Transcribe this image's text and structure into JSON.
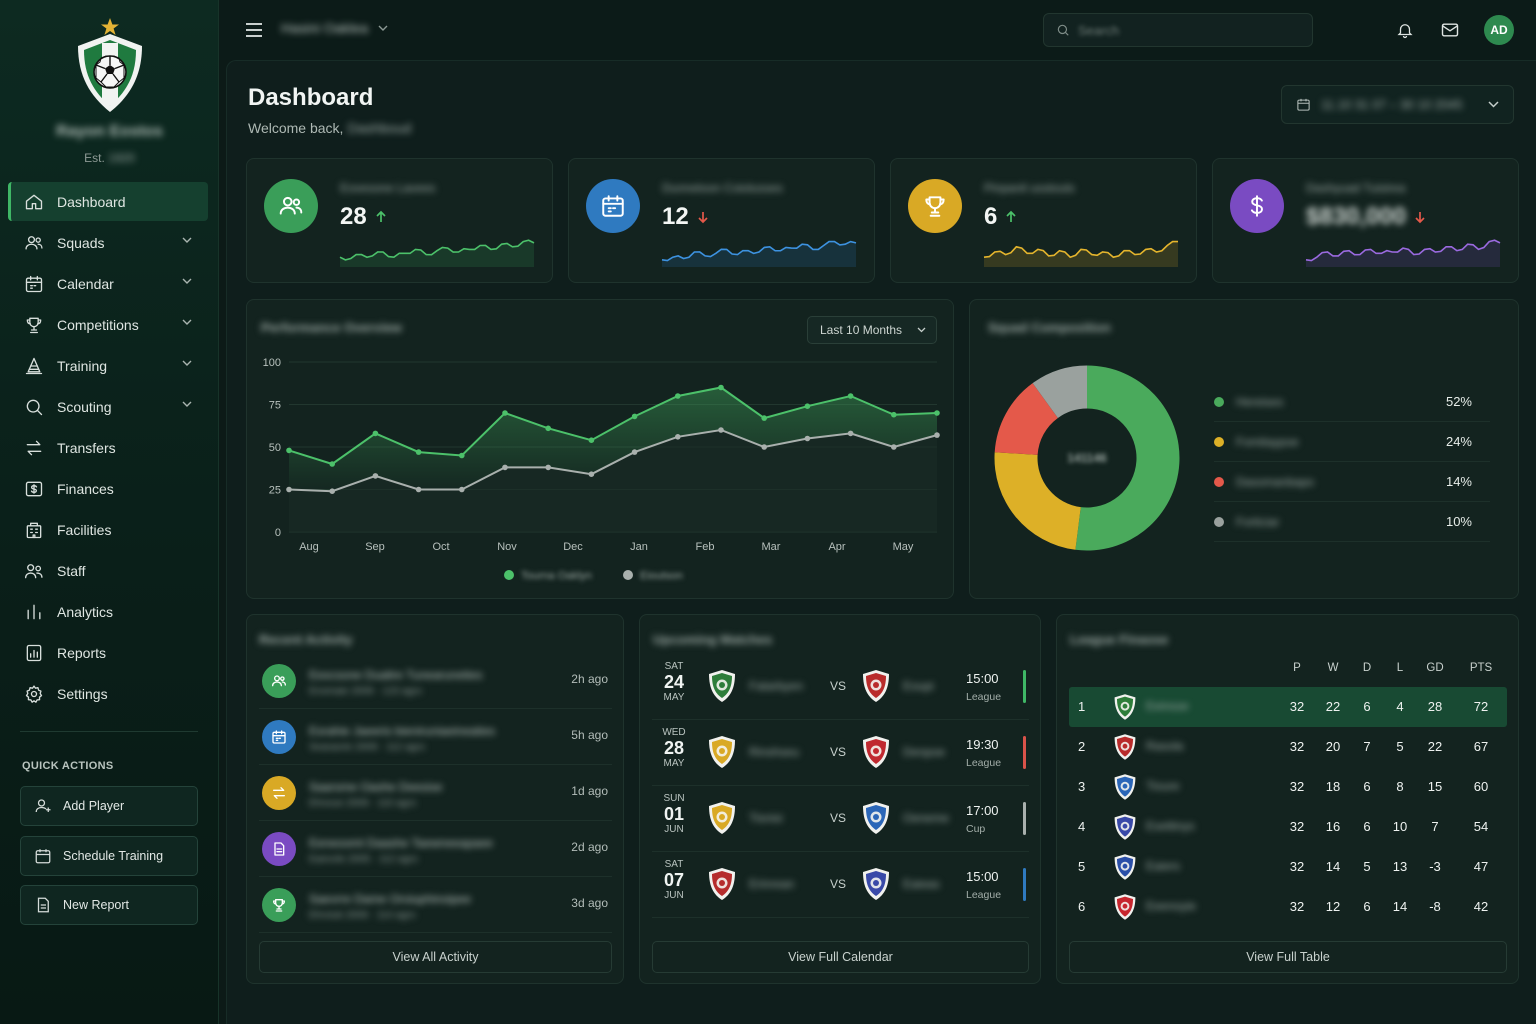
{
  "sidebar": {
    "club_name": "Rayon Eostos",
    "est_label": "Est.",
    "est_year": "1920",
    "nav": [
      {
        "label": "Dashboard",
        "icon": "home-icon",
        "active": true,
        "expandable": false
      },
      {
        "label": "Squads",
        "icon": "users-icon",
        "expandable": true
      },
      {
        "label": "Calendar",
        "icon": "calendar-icon",
        "expandable": true
      },
      {
        "label": "Competitions",
        "icon": "trophy-icon",
        "expandable": true
      },
      {
        "label": "Training",
        "icon": "cone-icon",
        "expandable": true
      },
      {
        "label": "Scouting",
        "icon": "search-icon",
        "expandable": true
      },
      {
        "label": "Transfers",
        "icon": "transfer-icon",
        "expandable": false
      },
      {
        "label": "Finances",
        "icon": "finance-icon",
        "expandable": false
      },
      {
        "label": "Facilities",
        "icon": "building-icon",
        "expandable": false
      },
      {
        "label": "Staff",
        "icon": "staff-icon",
        "expandable": false
      },
      {
        "label": "Analytics",
        "icon": "bar-chart-icon",
        "expandable": false
      },
      {
        "label": "Reports",
        "icon": "report-icon",
        "expandable": false
      },
      {
        "label": "Settings",
        "icon": "gear-icon",
        "expandable": false
      }
    ],
    "quick_actions_title": "QUICK ACTIONS",
    "quick_actions": [
      {
        "label": "Add Player",
        "icon": "add-user-icon"
      },
      {
        "label": "Schedule Training",
        "icon": "calendar-icon"
      },
      {
        "label": "New Report",
        "icon": "document-icon"
      }
    ]
  },
  "topbar": {
    "team_selector": "Hasini Oaklea",
    "search_placeholder": "Search",
    "avatar_initials": "AD"
  },
  "header": {
    "title": "Dashboard",
    "welcome": "Welcome back,",
    "user_name": "Dashboud",
    "date_range": "11.10 31 07 – 30 10 2045"
  },
  "stats": [
    {
      "label": "Eovesone Lavees",
      "value": "28",
      "trend": "up",
      "color": "#3a9e59",
      "icon": "users-icon",
      "spark": [
        0.3,
        0.25,
        0.4,
        0.35,
        0.5,
        0.3,
        0.45,
        0.6,
        0.4,
        0.55,
        0.65,
        0.5,
        0.6,
        0.75,
        0.6,
        0.8,
        0.7,
        0.9,
        0.85
      ]
    },
    {
      "label": "Dunnetoon Coiolusses",
      "value": "12",
      "trend": "down",
      "color": "#2f7ac0",
      "icon": "calendar-icon",
      "spark": [
        0.2,
        0.3,
        0.25,
        0.5,
        0.35,
        0.45,
        0.6,
        0.4,
        0.55,
        0.5,
        0.7,
        0.55,
        0.65,
        0.8,
        0.6,
        0.75,
        0.9,
        0.8,
        0.85
      ]
    },
    {
      "label": "Pinpanil usstouts",
      "value": "6",
      "trend": "up",
      "color": "#d9a925",
      "icon": "trophy-icon",
      "spark": [
        0.3,
        0.5,
        0.4,
        0.7,
        0.45,
        0.6,
        0.35,
        0.55,
        0.3,
        0.6,
        0.4,
        0.5,
        0.3,
        0.55,
        0.4,
        0.6,
        0.5,
        0.75,
        0.9
      ]
    },
    {
      "label": "Dashyuad Tuisirea",
      "value": "$830,000",
      "trend": "down",
      "color": "#7a4bc2",
      "icon": "dollar-icon",
      "spark": [
        0.2,
        0.3,
        0.5,
        0.35,
        0.55,
        0.4,
        0.6,
        0.45,
        0.5,
        0.65,
        0.4,
        0.6,
        0.5,
        0.7,
        0.55,
        0.8,
        0.6,
        0.9,
        0.85
      ]
    }
  ],
  "performance": {
    "title": "Performance Overview",
    "range_label": "Last 10 Months",
    "legend": [
      "Tourna Oaklyn",
      "Eioutson"
    ]
  },
  "chart_data": {
    "type": "line",
    "x": [
      "Aug",
      "Sep",
      "Oct",
      "Nov",
      "Dec",
      "Jan",
      "Feb",
      "Mar",
      "Apr",
      "May"
    ],
    "ylim": [
      0,
      100
    ],
    "yticks": [
      0,
      25,
      50,
      75,
      100
    ],
    "grid": true,
    "legend_placement": "bottom",
    "series": [
      {
        "name": "Tourna Oaklyn",
        "color": "#4cc16a",
        "points": [
          [
            0,
            48
          ],
          [
            0.7,
            40
          ],
          [
            1.4,
            58
          ],
          [
            2.1,
            47
          ],
          [
            2.8,
            45
          ],
          [
            3.5,
            70
          ],
          [
            4.2,
            61
          ],
          [
            4.9,
            54
          ],
          [
            5.6,
            68
          ],
          [
            6.3,
            80
          ],
          [
            7.0,
            85
          ],
          [
            7.7,
            67
          ],
          [
            8.4,
            74
          ],
          [
            9.1,
            80
          ],
          [
            9.8,
            69
          ],
          [
            10.5,
            70
          ]
        ]
      },
      {
        "name": "Eioutson",
        "color": "#a9b0ad",
        "points": [
          [
            0,
            25
          ],
          [
            0.7,
            24
          ],
          [
            1.4,
            33
          ],
          [
            2.1,
            25
          ],
          [
            2.8,
            25
          ],
          [
            3.5,
            38
          ],
          [
            4.2,
            38
          ],
          [
            4.9,
            34
          ],
          [
            5.6,
            47
          ],
          [
            6.3,
            56
          ],
          [
            7.0,
            60
          ],
          [
            7.7,
            50
          ],
          [
            8.4,
            55
          ],
          [
            9.1,
            58
          ],
          [
            9.8,
            50
          ],
          [
            10.5,
            57
          ]
        ]
      }
    ]
  },
  "composition": {
    "title": "Squad Composition",
    "center_label": "141146",
    "slices": [
      {
        "label": "Hereises",
        "pct": "52%",
        "value": 52,
        "color": "#4aaa5c"
      },
      {
        "label": "Fomitaypoe",
        "pct": "24%",
        "value": 24,
        "color": "#ddb027"
      },
      {
        "label": "Dasomanbapo",
        "pct": "14%",
        "value": 14,
        "color": "#e4594a"
      },
      {
        "label": "Forticiar",
        "pct": "10%",
        "value": 10,
        "color": "#9aa19e"
      }
    ]
  },
  "activity": {
    "title": "Recent Activity",
    "items": [
      {
        "title": "Eexcsone Dualire Tunearuneties",
        "sub": "Enomaie 2009 · 123 agro",
        "time": "2h ago",
        "color": "#3a9e59",
        "icon": "users-icon"
      },
      {
        "title": "Esrahie Jaeeris bieniruniaeineaties",
        "sub": "Searaorie 2009 · 112 agro",
        "time": "5h ago",
        "color": "#2f7ac0",
        "icon": "calendar-icon"
      },
      {
        "title": "Saarsme Oashe Deesise",
        "sub": "Ehnoue 2009 · 110 agro",
        "time": "1d ago",
        "color": "#d9a925",
        "icon": "transfer-icon"
      },
      {
        "title": "Eeneoomt Daashe Taewneeapaee",
        "sub": "Eaevole 2005 · 112 agro",
        "time": "2d ago",
        "color": "#7a4bc2",
        "icon": "document-icon"
      },
      {
        "title": "Saevrre Dame Oroiuphinoipee",
        "sub": "Ehroiuk 2009 · 114 agro",
        "time": "3d ago",
        "color": "#3a9e59",
        "icon": "trophy-icon"
      }
    ],
    "view_all": "View All Activity"
  },
  "matches": {
    "title": "Upcoming Matches",
    "vs": "VS",
    "items": [
      {
        "dow": "SAT",
        "day": "24",
        "mon": "MAY",
        "home": "Fatarbyen",
        "away": "Eoupi",
        "time": "15:00",
        "comp": "League",
        "bar": "#3fb766",
        "home_color": "#2e7d3a",
        "away_color": "#b92b2b"
      },
      {
        "dow": "WED",
        "day": "28",
        "mon": "MAY",
        "home": "Rinshseu",
        "away": "Denpoe",
        "time": "19:30",
        "comp": "League",
        "bar": "#d9534a",
        "home_color": "#d9a925",
        "away_color": "#c0282f"
      },
      {
        "dow": "SUN",
        "day": "01",
        "mon": "JUN",
        "home": "Tisnisi",
        "away": "Oeneme",
        "time": "17:00",
        "comp": "Cup",
        "bar": "#a9b0ad",
        "home_color": "#d9a925",
        "away_color": "#2b66b8"
      },
      {
        "dow": "SAT",
        "day": "07",
        "mon": "JUN",
        "home": "Erinrean",
        "away": "Eaieas",
        "time": "15:00",
        "comp": "League",
        "bar": "#2f7ac0",
        "home_color": "#b52c2c",
        "away_color": "#3949a8"
      }
    ],
    "view_all": "View Full Calendar"
  },
  "league": {
    "title": "League Finaose",
    "columns": [
      "P",
      "W",
      "D",
      "L",
      "GD",
      "PTS"
    ],
    "rows": [
      {
        "pos": "1",
        "team": "Eeinsse",
        "p": "32",
        "w": "22",
        "d": "6",
        "l": "4",
        "gd": "28",
        "pts": "72",
        "color": "#2e7d3a"
      },
      {
        "pos": "2",
        "team": "Rasola",
        "p": "32",
        "w": "20",
        "d": "7",
        "l": "5",
        "gd": "22",
        "pts": "67",
        "color": "#b92b2b"
      },
      {
        "pos": "3",
        "team": "Tioure",
        "p": "32",
        "w": "18",
        "d": "6",
        "l": "8",
        "gd": "15",
        "pts": "60",
        "color": "#2b66b8"
      },
      {
        "pos": "4",
        "team": "Esettinys",
        "p": "32",
        "w": "16",
        "d": "6",
        "l": "10",
        "gd": "7",
        "pts": "54",
        "color": "#3949a8"
      },
      {
        "pos": "5",
        "team": "Eaiers",
        "p": "32",
        "w": "14",
        "d": "5",
        "l": "13",
        "gd": "-3",
        "pts": "47",
        "color": "#2b4fa8"
      },
      {
        "pos": "6",
        "team": "Eeenoyie",
        "p": "32",
        "w": "12",
        "d": "6",
        "l": "14",
        "gd": "-8",
        "pts": "42",
        "color": "#c7262e"
      }
    ],
    "view_all": "View Full Table"
  }
}
